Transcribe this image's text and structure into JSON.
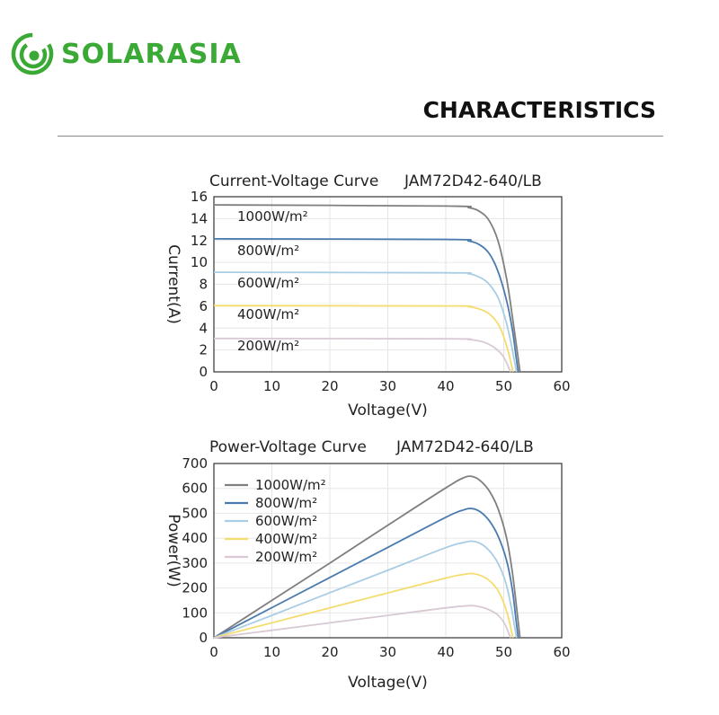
{
  "brand": {
    "name": "SOLARASIA",
    "color": "#3aa935"
  },
  "page": {
    "heading": "CHARACTERISTICS"
  },
  "chart_data": [
    {
      "type": "line",
      "title": "Current-Voltage Curve",
      "model": "JAM72D42-640/LB",
      "xlabel": "Voltage(V)",
      "ylabel": "Current(A)",
      "xlim": [
        0,
        60
      ],
      "ylim": [
        0,
        16
      ],
      "xticks": [
        0,
        10,
        20,
        30,
        40,
        50,
        60
      ],
      "yticks": [
        0,
        2,
        4,
        6,
        8,
        10,
        12,
        14,
        16
      ],
      "grid": true,
      "legend": "inline labels",
      "series": [
        {
          "name": "1000W/m²",
          "color": "#7f7f7f",
          "x": [
            0,
            40,
            44,
            46,
            47.5,
            49,
            50.5,
            51.5,
            52.3,
            52.8
          ],
          "y": [
            15.25,
            15.15,
            15.0,
            14.6,
            13.8,
            12.0,
            8.5,
            5.0,
            2.0,
            0
          ]
        },
        {
          "name": "800W/m²",
          "color": "#4a7bae",
          "x": [
            0,
            40,
            44,
            46,
            47.5,
            49,
            50.5,
            51.5,
            52.1,
            52.5
          ],
          "y": [
            12.15,
            12.1,
            11.95,
            11.55,
            10.8,
            9.2,
            6.5,
            3.8,
            1.5,
            0
          ]
        },
        {
          "name": "600W/m²",
          "color": "#a9cde4",
          "x": [
            0,
            40,
            44,
            46,
            47.5,
            49,
            50.3,
            51.2,
            51.8,
            52.2
          ],
          "y": [
            9.1,
            9.05,
            8.95,
            8.6,
            8.0,
            6.8,
            4.8,
            2.8,
            1.1,
            0
          ]
        },
        {
          "name": "400W/m²",
          "color": "#f5dc6e",
          "x": [
            0,
            40,
            44,
            46,
            47.5,
            49,
            50,
            50.8,
            51.3,
            51.6
          ],
          "y": [
            6.05,
            6.02,
            5.95,
            5.7,
            5.3,
            4.4,
            3.2,
            1.8,
            0.7,
            0
          ]
        },
        {
          "name": "200W/m²",
          "color": "#d9c9d4",
          "x": [
            0,
            40,
            44,
            46,
            47.5,
            48.8,
            49.8,
            50.5,
            50.9,
            51.2
          ],
          "y": [
            3.05,
            3.02,
            2.95,
            2.8,
            2.5,
            2.05,
            1.5,
            0.85,
            0.3,
            0
          ]
        }
      ]
    },
    {
      "type": "line",
      "title": "Power-Voltage Curve",
      "model": "JAM72D42-640/LB",
      "xlabel": "Voltage(V)",
      "ylabel": "Power(W)",
      "xlim": [
        0,
        60
      ],
      "ylim": [
        0,
        700
      ],
      "xticks": [
        0,
        10,
        20,
        30,
        40,
        50,
        60
      ],
      "yticks": [
        0,
        100,
        200,
        300,
        400,
        500,
        600,
        700
      ],
      "grid": true,
      "legend": "top-left",
      "series": [
        {
          "name": "1000W/m²",
          "color": "#7f7f7f",
          "x": [
            0,
            10,
            20,
            30,
            40,
            43,
            44.5,
            46,
            47.5,
            49,
            50.5,
            51.5,
            52.3,
            52.8
          ],
          "y": [
            0,
            150,
            300,
            452,
            602,
            642,
            648,
            630,
            590,
            520,
            400,
            260,
            105,
            0
          ]
        },
        {
          "name": "800W/m²",
          "color": "#4a7bae",
          "x": [
            0,
            10,
            20,
            30,
            40,
            43,
            44.5,
            46,
            47.5,
            49,
            50.5,
            51.5,
            52.1,
            52.5
          ],
          "y": [
            0,
            121,
            242,
            363,
            484,
            513,
            519,
            505,
            470,
            410,
            310,
            190,
            75,
            0
          ]
        },
        {
          "name": "600W/m²",
          "color": "#a9cde4",
          "x": [
            0,
            10,
            20,
            30,
            40,
            43,
            44.5,
            46,
            47.5,
            49,
            50.3,
            51.2,
            51.8,
            52.2
          ],
          "y": [
            0,
            90,
            181,
            271,
            362,
            382,
            388,
            378,
            350,
            300,
            225,
            135,
            55,
            0
          ]
        },
        {
          "name": "400W/m²",
          "color": "#f5dc6e",
          "x": [
            0,
            10,
            20,
            30,
            40,
            43,
            44.5,
            46,
            47.5,
            49,
            50,
            50.8,
            51.3,
            51.6
          ],
          "y": [
            0,
            60,
            120,
            180,
            240,
            254,
            258,
            250,
            230,
            190,
            140,
            80,
            30,
            0
          ]
        },
        {
          "name": "200W/m²",
          "color": "#d9c9d4",
          "x": [
            0,
            10,
            20,
            30,
            40,
            43,
            44.5,
            46,
            47.5,
            48.8,
            49.8,
            50.5,
            50.9,
            51.2
          ],
          "y": [
            0,
            30,
            60,
            90,
            120,
            127,
            129,
            124,
            112,
            95,
            70,
            40,
            15,
            0
          ]
        }
      ]
    }
  ]
}
